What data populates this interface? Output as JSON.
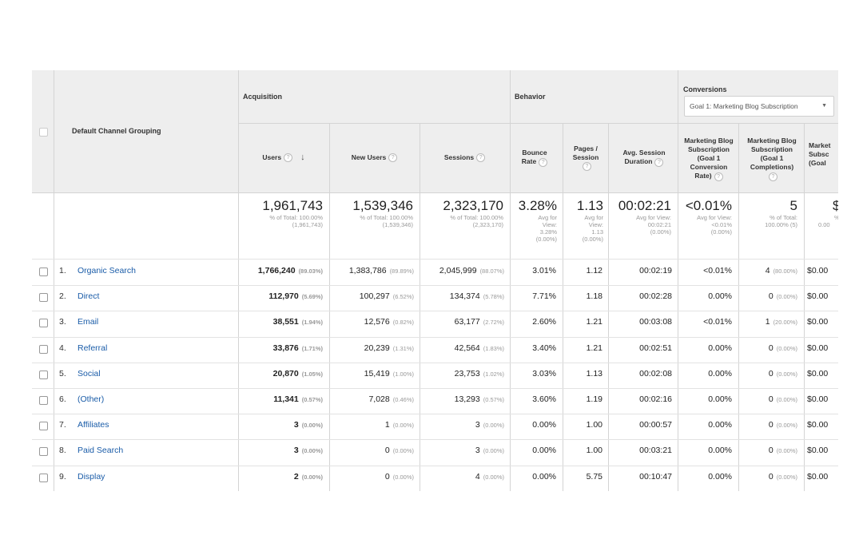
{
  "header": {
    "dimension_label": "Default Channel Grouping",
    "groups": {
      "acquisition": "Acquisition",
      "behavior": "Behavior",
      "conversions": "Conversions"
    },
    "goal_dropdown": "Goal 1: Marketing Blog Subscription",
    "columns": {
      "users": "Users",
      "new_users": "New Users",
      "sessions": "Sessions",
      "bounce_rate": "Bounce Rate",
      "pages_session": "Pages / Session",
      "avg_session_duration": "Avg. Session Duration",
      "conv_rate": "Marketing Blog Subscription (Goal 1 Conversion Rate)",
      "completions": "Marketing Blog Subscription (Goal 1 Completions)",
      "value": "Market Subsc (Goal"
    }
  },
  "totals": {
    "users": {
      "value": "1,961,743",
      "sub1": "% of Total: 100.00%",
      "sub2": "(1,961,743)"
    },
    "new_users": {
      "value": "1,539,346",
      "sub1": "% of Total: 100.00%",
      "sub2": "(1,539,346)"
    },
    "sessions": {
      "value": "2,323,170",
      "sub1": "% of Total: 100.00%",
      "sub2": "(2,323,170)"
    },
    "bounce_rate": {
      "value": "3.28%",
      "sub1": "Avg for",
      "sub2": "View:",
      "sub3": "3.28%",
      "sub4": "(0.00%)"
    },
    "pages_session": {
      "value": "1.13",
      "sub1": "Avg for",
      "sub2": "View:",
      "sub3": "1.13",
      "sub4": "(0.00%)"
    },
    "avg_session_duration": {
      "value": "00:02:21",
      "sub1": "Avg for View:",
      "sub2": "00:02:21",
      "sub3": "(0.00%)"
    },
    "conv_rate": {
      "value": "<0.01%",
      "sub1": "Avg for View:",
      "sub2": "<0.01%",
      "sub3": "(0.00%)"
    },
    "completions": {
      "value": "5",
      "sub1": "% of Total:",
      "sub2": "100.00% (5)"
    },
    "value": {
      "value": "$",
      "sub1": "%",
      "sub2": "0.00"
    }
  },
  "rows": [
    {
      "num": "1.",
      "channel": "Organic Search",
      "users": "1,766,240",
      "users_pct": "(89.03%)",
      "new_users": "1,383,786",
      "new_users_pct": "(89.89%)",
      "sessions": "2,045,999",
      "sessions_pct": "(88.07%)",
      "bounce_rate": "3.01%",
      "pages": "1.12",
      "duration": "00:02:19",
      "conv_rate": "<0.01%",
      "completions": "4",
      "completions_pct": "(80.00%)",
      "value": "$0.00"
    },
    {
      "num": "2.",
      "channel": "Direct",
      "users": "112,970",
      "users_pct": "(5.69%)",
      "new_users": "100,297",
      "new_users_pct": "(6.52%)",
      "sessions": "134,374",
      "sessions_pct": "(5.78%)",
      "bounce_rate": "7.71%",
      "pages": "1.18",
      "duration": "00:02:28",
      "conv_rate": "0.00%",
      "completions": "0",
      "completions_pct": "(0.00%)",
      "value": "$0.00"
    },
    {
      "num": "3.",
      "channel": "Email",
      "users": "38,551",
      "users_pct": "(1.94%)",
      "new_users": "12,576",
      "new_users_pct": "(0.82%)",
      "sessions": "63,177",
      "sessions_pct": "(2.72%)",
      "bounce_rate": "2.60%",
      "pages": "1.21",
      "duration": "00:03:08",
      "conv_rate": "<0.01%",
      "completions": "1",
      "completions_pct": "(20.00%)",
      "value": "$0.00"
    },
    {
      "num": "4.",
      "channel": "Referral",
      "users": "33,876",
      "users_pct": "(1.71%)",
      "new_users": "20,239",
      "new_users_pct": "(1.31%)",
      "sessions": "42,564",
      "sessions_pct": "(1.83%)",
      "bounce_rate": "3.40%",
      "pages": "1.21",
      "duration": "00:02:51",
      "conv_rate": "0.00%",
      "completions": "0",
      "completions_pct": "(0.00%)",
      "value": "$0.00"
    },
    {
      "num": "5.",
      "channel": "Social",
      "users": "20,870",
      "users_pct": "(1.05%)",
      "new_users": "15,419",
      "new_users_pct": "(1.00%)",
      "sessions": "23,753",
      "sessions_pct": "(1.02%)",
      "bounce_rate": "3.03%",
      "pages": "1.13",
      "duration": "00:02:08",
      "conv_rate": "0.00%",
      "completions": "0",
      "completions_pct": "(0.00%)",
      "value": "$0.00"
    },
    {
      "num": "6.",
      "channel": "(Other)",
      "users": "11,341",
      "users_pct": "(0.57%)",
      "new_users": "7,028",
      "new_users_pct": "(0.46%)",
      "sessions": "13,293",
      "sessions_pct": "(0.57%)",
      "bounce_rate": "3.60%",
      "pages": "1.19",
      "duration": "00:02:16",
      "conv_rate": "0.00%",
      "completions": "0",
      "completions_pct": "(0.00%)",
      "value": "$0.00"
    },
    {
      "num": "7.",
      "channel": "Affiliates",
      "users": "3",
      "users_pct": "(0.00%)",
      "new_users": "1",
      "new_users_pct": "(0.00%)",
      "sessions": "3",
      "sessions_pct": "(0.00%)",
      "bounce_rate": "0.00%",
      "pages": "1.00",
      "duration": "00:00:57",
      "conv_rate": "0.00%",
      "completions": "0",
      "completions_pct": "(0.00%)",
      "value": "$0.00"
    },
    {
      "num": "8.",
      "channel": "Paid Search",
      "users": "3",
      "users_pct": "(0.00%)",
      "new_users": "0",
      "new_users_pct": "(0.00%)",
      "sessions": "3",
      "sessions_pct": "(0.00%)",
      "bounce_rate": "0.00%",
      "pages": "1.00",
      "duration": "00:03:21",
      "conv_rate": "0.00%",
      "completions": "0",
      "completions_pct": "(0.00%)",
      "value": "$0.00"
    },
    {
      "num": "9.",
      "channel": "Display",
      "users": "2",
      "users_pct": "(0.00%)",
      "new_users": "0",
      "new_users_pct": "(0.00%)",
      "sessions": "4",
      "sessions_pct": "(0.00%)",
      "bounce_rate": "0.00%",
      "pages": "5.75",
      "duration": "00:10:47",
      "conv_rate": "0.00%",
      "completions": "0",
      "completions_pct": "(0.00%)",
      "value": "$0.00"
    }
  ]
}
